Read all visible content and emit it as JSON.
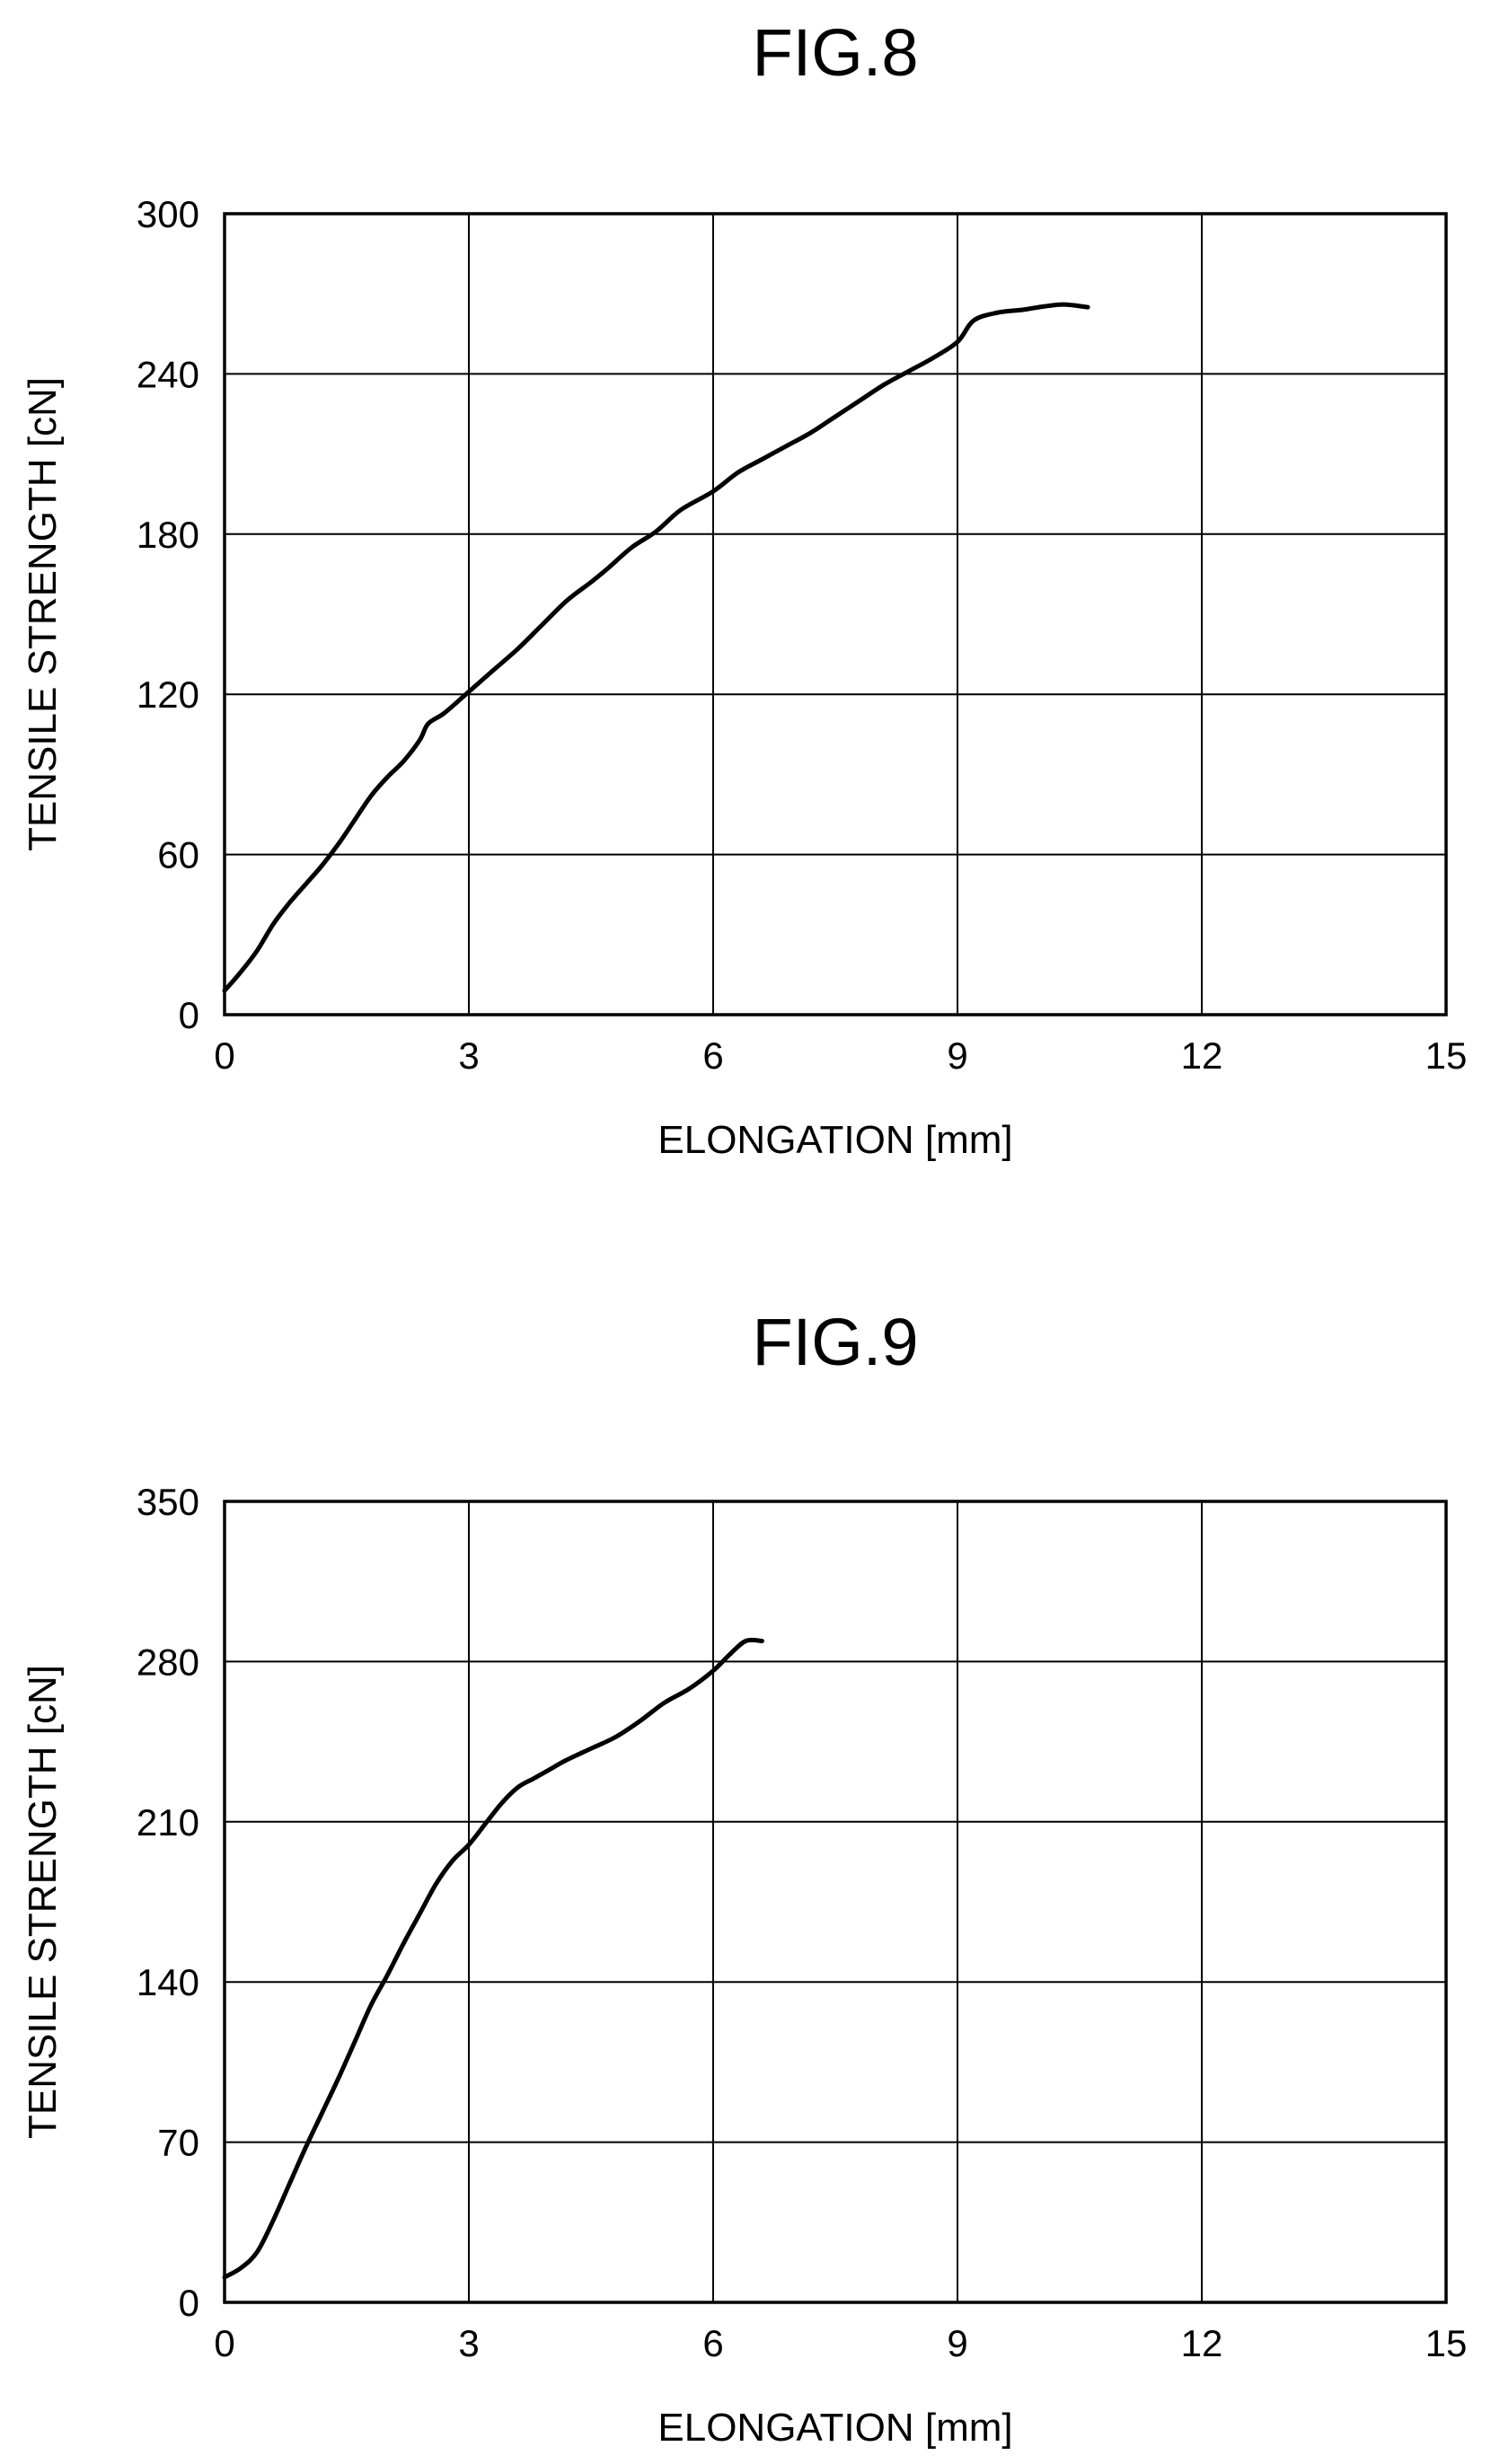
{
  "chart_data": [
    {
      "type": "line",
      "title": "FIG.8",
      "xlabel": "ELONGATION [mm]",
      "ylabel": "TENSILE STRENGTH [cN]",
      "xlim": [
        0,
        15
      ],
      "ylim": [
        0,
        300
      ],
      "xticks": [
        0,
        3,
        6,
        9,
        12,
        15
      ],
      "yticks": [
        0,
        60,
        120,
        180,
        240,
        300
      ],
      "xtick_labels": [
        "0",
        "3",
        "6",
        "9",
        "12",
        "15"
      ],
      "ytick_labels": [
        "0",
        "60",
        "120",
        "180",
        "240",
        "300"
      ],
      "grid": true,
      "series": [
        {
          "x": [
            0,
            0.2,
            0.4,
            0.6,
            0.8,
            1.0,
            1.2,
            1.4,
            1.6,
            1.8,
            2.0,
            2.2,
            2.4,
            2.5,
            2.7,
            3.0,
            3.3,
            3.6,
            3.9,
            4.2,
            4.5,
            4.7,
            5.0,
            5.3,
            5.6,
            6.0,
            6.3,
            6.6,
            6.9,
            7.2,
            7.5,
            7.8,
            8.1,
            8.4,
            8.7,
            9.0,
            9.2,
            9.5,
            9.8,
            10.0,
            10.3,
            10.6
          ],
          "y": [
            9,
            16,
            24,
            34,
            42,
            49,
            56,
            64,
            73,
            82,
            89,
            95,
            103,
            109,
            113,
            121,
            129,
            137,
            146,
            155,
            162,
            167,
            175,
            181,
            189,
            196,
            203,
            208,
            213,
            218,
            224,
            230,
            236,
            241,
            246,
            252,
            260,
            263,
            264,
            265,
            266,
            265
          ]
        }
      ]
    },
    {
      "type": "line",
      "title": "FIG.9",
      "xlabel": "ELONGATION [mm]",
      "ylabel": "TENSILE STRENGTH [cN]",
      "xlim": [
        0,
        15
      ],
      "ylim": [
        0,
        350
      ],
      "xticks": [
        0,
        3,
        6,
        9,
        12,
        15
      ],
      "yticks": [
        0,
        70,
        140,
        210,
        280,
        350
      ],
      "xtick_labels": [
        "0",
        "3",
        "6",
        "9",
        "12",
        "15"
      ],
      "ytick_labels": [
        "0",
        "70",
        "140",
        "210",
        "280",
        "350"
      ],
      "grid": true,
      "series": [
        {
          "x": [
            0,
            0.2,
            0.4,
            0.6,
            0.8,
            1.0,
            1.2,
            1.4,
            1.6,
            1.8,
            2.0,
            2.2,
            2.4,
            2.6,
            2.8,
            3.0,
            3.2,
            3.4,
            3.6,
            3.8,
            4.0,
            4.2,
            4.5,
            4.8,
            5.1,
            5.4,
            5.7,
            6.0,
            6.2,
            6.4,
            6.6
          ],
          "y": [
            11,
            15,
            22,
            36,
            52,
            68,
            83,
            98,
            114,
            130,
            143,
            157,
            170,
            183,
            193,
            200,
            209,
            218,
            225,
            229,
            233,
            237,
            242,
            247,
            254,
            262,
            268,
            276,
            283,
            289,
            289
          ]
        }
      ]
    }
  ]
}
